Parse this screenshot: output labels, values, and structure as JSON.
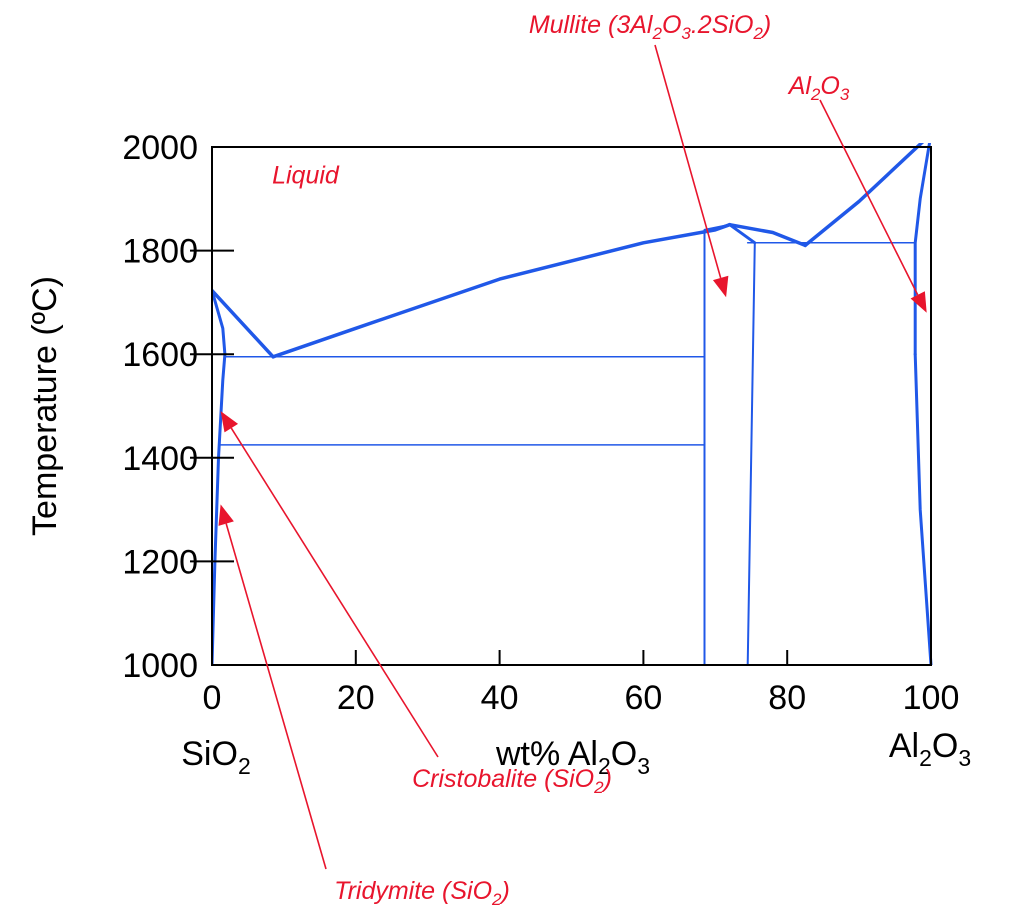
{
  "chart_data": {
    "type": "line",
    "title": "",
    "xlabel_parts": [
      "wt% Al",
      "2",
      "O",
      "3"
    ],
    "ylabel": "Temperature (ºC)",
    "xlim": [
      0,
      100
    ],
    "ylim": [
      1000,
      2000
    ],
    "x_ticks": [
      "0",
      "20",
      "40",
      "60",
      "80",
      "100"
    ],
    "y_ticks": [
      "1000",
      "1200",
      "1400",
      "1600",
      "1800",
      "2000"
    ],
    "left_component_parts": [
      "SiO",
      "2"
    ],
    "right_component_parts": [
      "Al",
      "2",
      "O",
      "3"
    ],
    "phase_labels": [
      {
        "text": "Liquid",
        "x": 13,
        "y": 1930
      }
    ],
    "annotations": [
      {
        "parts": [
          "Mullite (3Al",
          "2",
          "O",
          "3",
          ".2SiO",
          "2",
          ")"
        ],
        "target": {
          "x": 71.5,
          "y": 1710
        }
      },
      {
        "parts": [
          "Al",
          "2",
          "O",
          "3"
        ],
        "target": {
          "x": 99.4,
          "y": 1680
        }
      },
      {
        "parts": [
          "Cristobalite (SiO",
          "2",
          ")"
        ],
        "target": {
          "x": 1.2,
          "y": 1490
        }
      },
      {
        "parts": [
          "Tridymite (SiO",
          "2",
          ")"
        ],
        "target": {
          "x": 1.2,
          "y": 1310
        }
      }
    ],
    "series": [
      {
        "type": "liquidus",
        "points": [
          [
            0,
            1723
          ],
          [
            8.5,
            1595
          ]
        ]
      },
      {
        "type": "liquidus",
        "points": [
          [
            8.5,
            1595
          ],
          [
            20,
            1650
          ],
          [
            40,
            1745
          ],
          [
            60,
            1815
          ],
          [
            70,
            1840
          ],
          [
            72,
            1850
          ]
        ]
      },
      {
        "type": "liquidus",
        "points": [
          [
            72,
            1850
          ],
          [
            78,
            1835
          ],
          [
            82.5,
            1810
          ]
        ]
      },
      {
        "type": "liquidus",
        "points": [
          [
            82.5,
            1810
          ],
          [
            90,
            1895
          ],
          [
            100,
            2025
          ]
        ]
      },
      {
        "type": "solidus",
        "points": [
          [
            72,
            1850
          ],
          [
            75.5,
            1815
          ]
        ]
      },
      {
        "type": "solidus",
        "points": [
          [
            0,
            1723
          ],
          [
            1.5,
            1650
          ],
          [
            1.8,
            1600
          ]
        ]
      },
      {
        "type": "solidus",
        "points": [
          [
            0,
            1000
          ],
          [
            0.4,
            1200
          ],
          [
            0.9,
            1400
          ],
          [
            1.5,
            1550
          ],
          [
            1.8,
            1600
          ]
        ]
      },
      {
        "type": "solidus",
        "points": [
          [
            100,
            2025
          ],
          [
            98.5,
            1900
          ],
          [
            97.8,
            1815
          ],
          [
            97.8,
            1600
          ]
        ]
      },
      {
        "type": "solidus",
        "points": [
          [
            97.8,
            1600
          ],
          [
            98.5,
            1300
          ],
          [
            100,
            1000
          ]
        ]
      },
      {
        "type": "phase-boundary",
        "points": [
          [
            68.5,
            1000
          ],
          [
            68.5,
            1840
          ],
          [
            72,
            1850
          ]
        ]
      },
      {
        "type": "phase-boundary",
        "points": [
          [
            74.5,
            1000
          ],
          [
            75.5,
            1815
          ]
        ]
      },
      {
        "type": "isotherm",
        "points": [
          [
            1.8,
            1595
          ],
          [
            68.5,
            1595
          ]
        ]
      },
      {
        "type": "isotherm",
        "points": [
          [
            1.0,
            1425
          ],
          [
            68.5,
            1425
          ]
        ]
      },
      {
        "type": "isotherm",
        "points": [
          [
            74.5,
            1815
          ],
          [
            97.8,
            1815
          ]
        ]
      }
    ]
  },
  "colors": {
    "curve": "#2058e8",
    "annotation": "#e8152d",
    "axis": "#000000"
  }
}
